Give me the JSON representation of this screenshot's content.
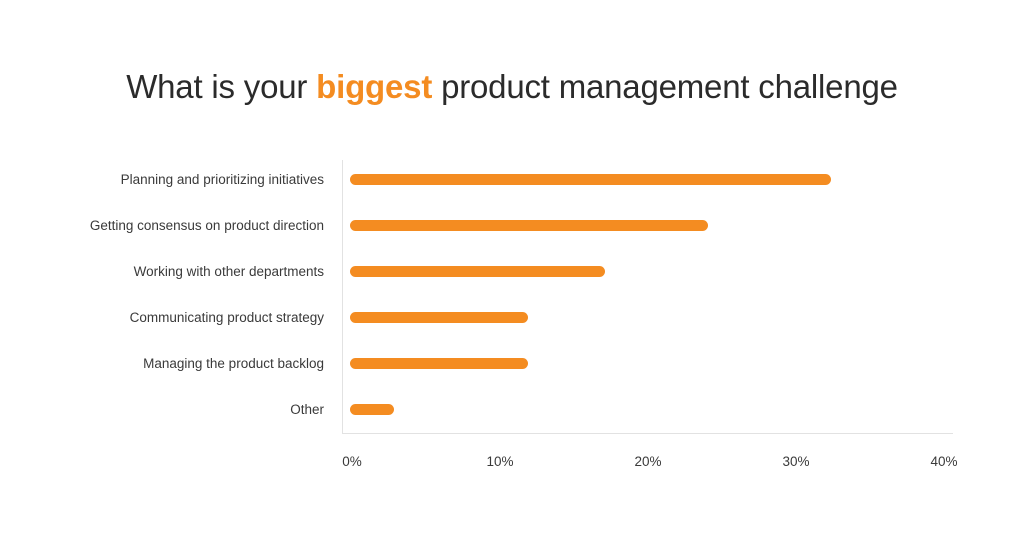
{
  "title": {
    "before": "What is your ",
    "highlight": "biggest",
    "after": " product management challenge"
  },
  "colors": {
    "bar": "#f48c21",
    "highlight": "#f48c21",
    "text": "#2b2b2b",
    "axis": "#e2e2e2"
  },
  "chart_data": {
    "type": "bar",
    "orientation": "horizontal",
    "title": "What is your biggest product management challenge",
    "categories": [
      "Planning and prioritizing initiatives",
      "Getting consensus on product direction",
      "Working with other departments",
      "Communicating product strategy",
      "Managing the product backlog",
      "Other"
    ],
    "values": [
      32.5,
      24.2,
      17.2,
      12.0,
      12.0,
      3.0
    ],
    "xlabel": "",
    "ylabel": "",
    "xlim": [
      0,
      40
    ],
    "x_ticks": [
      "0%",
      "10%",
      "20%",
      "30%",
      "40%"
    ],
    "unit": "%",
    "grid": false,
    "legend": null
  }
}
